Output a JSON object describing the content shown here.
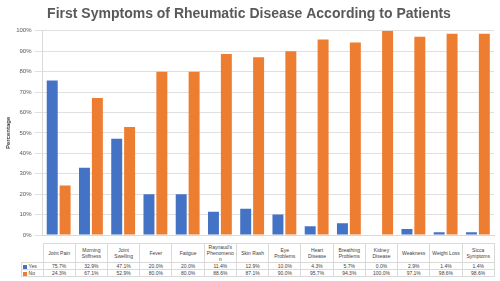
{
  "chart_data": {
    "type": "bar",
    "title": "First Symptoms of Rheumatic Disease According to Patients",
    "y_label": "Percentage",
    "categories": [
      "Joint Pain",
      "Morning Stiffness",
      "Joint Swelling",
      "Fever",
      "Fatigue",
      "Raynaud's Phenomenon",
      "Skin Rash",
      "Eye Problems",
      "Heart Disease",
      "Breathing Problems",
      "Kidney Disease",
      "Weakness",
      "Weight Loss",
      "Sicca Symptoms"
    ],
    "series": [
      {
        "name": "Yes",
        "color": "#4472c4",
        "values": [
          75.7,
          32.9,
          47.1,
          20.0,
          20.0,
          11.4,
          12.9,
          10.0,
          4.3,
          5.7,
          0.0,
          2.9,
          1.4,
          1.4
        ],
        "value_labels": [
          "75.7%",
          "32.9%",
          "47.1%",
          "20.0%",
          "20.0%",
          "11.4%",
          "12.9%",
          "10.0%",
          "4.3%",
          "5.7%",
          "0.0%",
          "2.9%",
          "1.4%",
          "1.4%"
        ]
      },
      {
        "name": "No",
        "color": "#ed7d31",
        "values": [
          24.3,
          67.1,
          52.9,
          80.0,
          80.0,
          88.6,
          87.1,
          90.0,
          95.7,
          94.3,
          100.0,
          97.1,
          98.6,
          98.6
        ],
        "value_labels": [
          "24.3%",
          "67.1%",
          "52.9%",
          "80.0%",
          "80.0%",
          "88.6%",
          "87.1%",
          "90.0%",
          "95.7%",
          "94.3%",
          "100.0%",
          "97.1%",
          "98.6%",
          "98.6%"
        ]
      }
    ],
    "ylim": [
      0,
      100
    ],
    "yticks": [
      {
        "value": 0,
        "label": "0%"
      },
      {
        "value": 10,
        "label": "10%"
      },
      {
        "value": 20,
        "label": "20%"
      },
      {
        "value": 30,
        "label": "30%"
      },
      {
        "value": 40,
        "label": "40%"
      },
      {
        "value": 50,
        "label": "50%"
      },
      {
        "value": 60,
        "label": "60%"
      },
      {
        "value": 70,
        "label": "70%"
      },
      {
        "value": 80,
        "label": "80%"
      },
      {
        "value": 90,
        "label": "90%"
      },
      {
        "value": 100,
        "label": "100%"
      }
    ],
    "grid": true
  }
}
